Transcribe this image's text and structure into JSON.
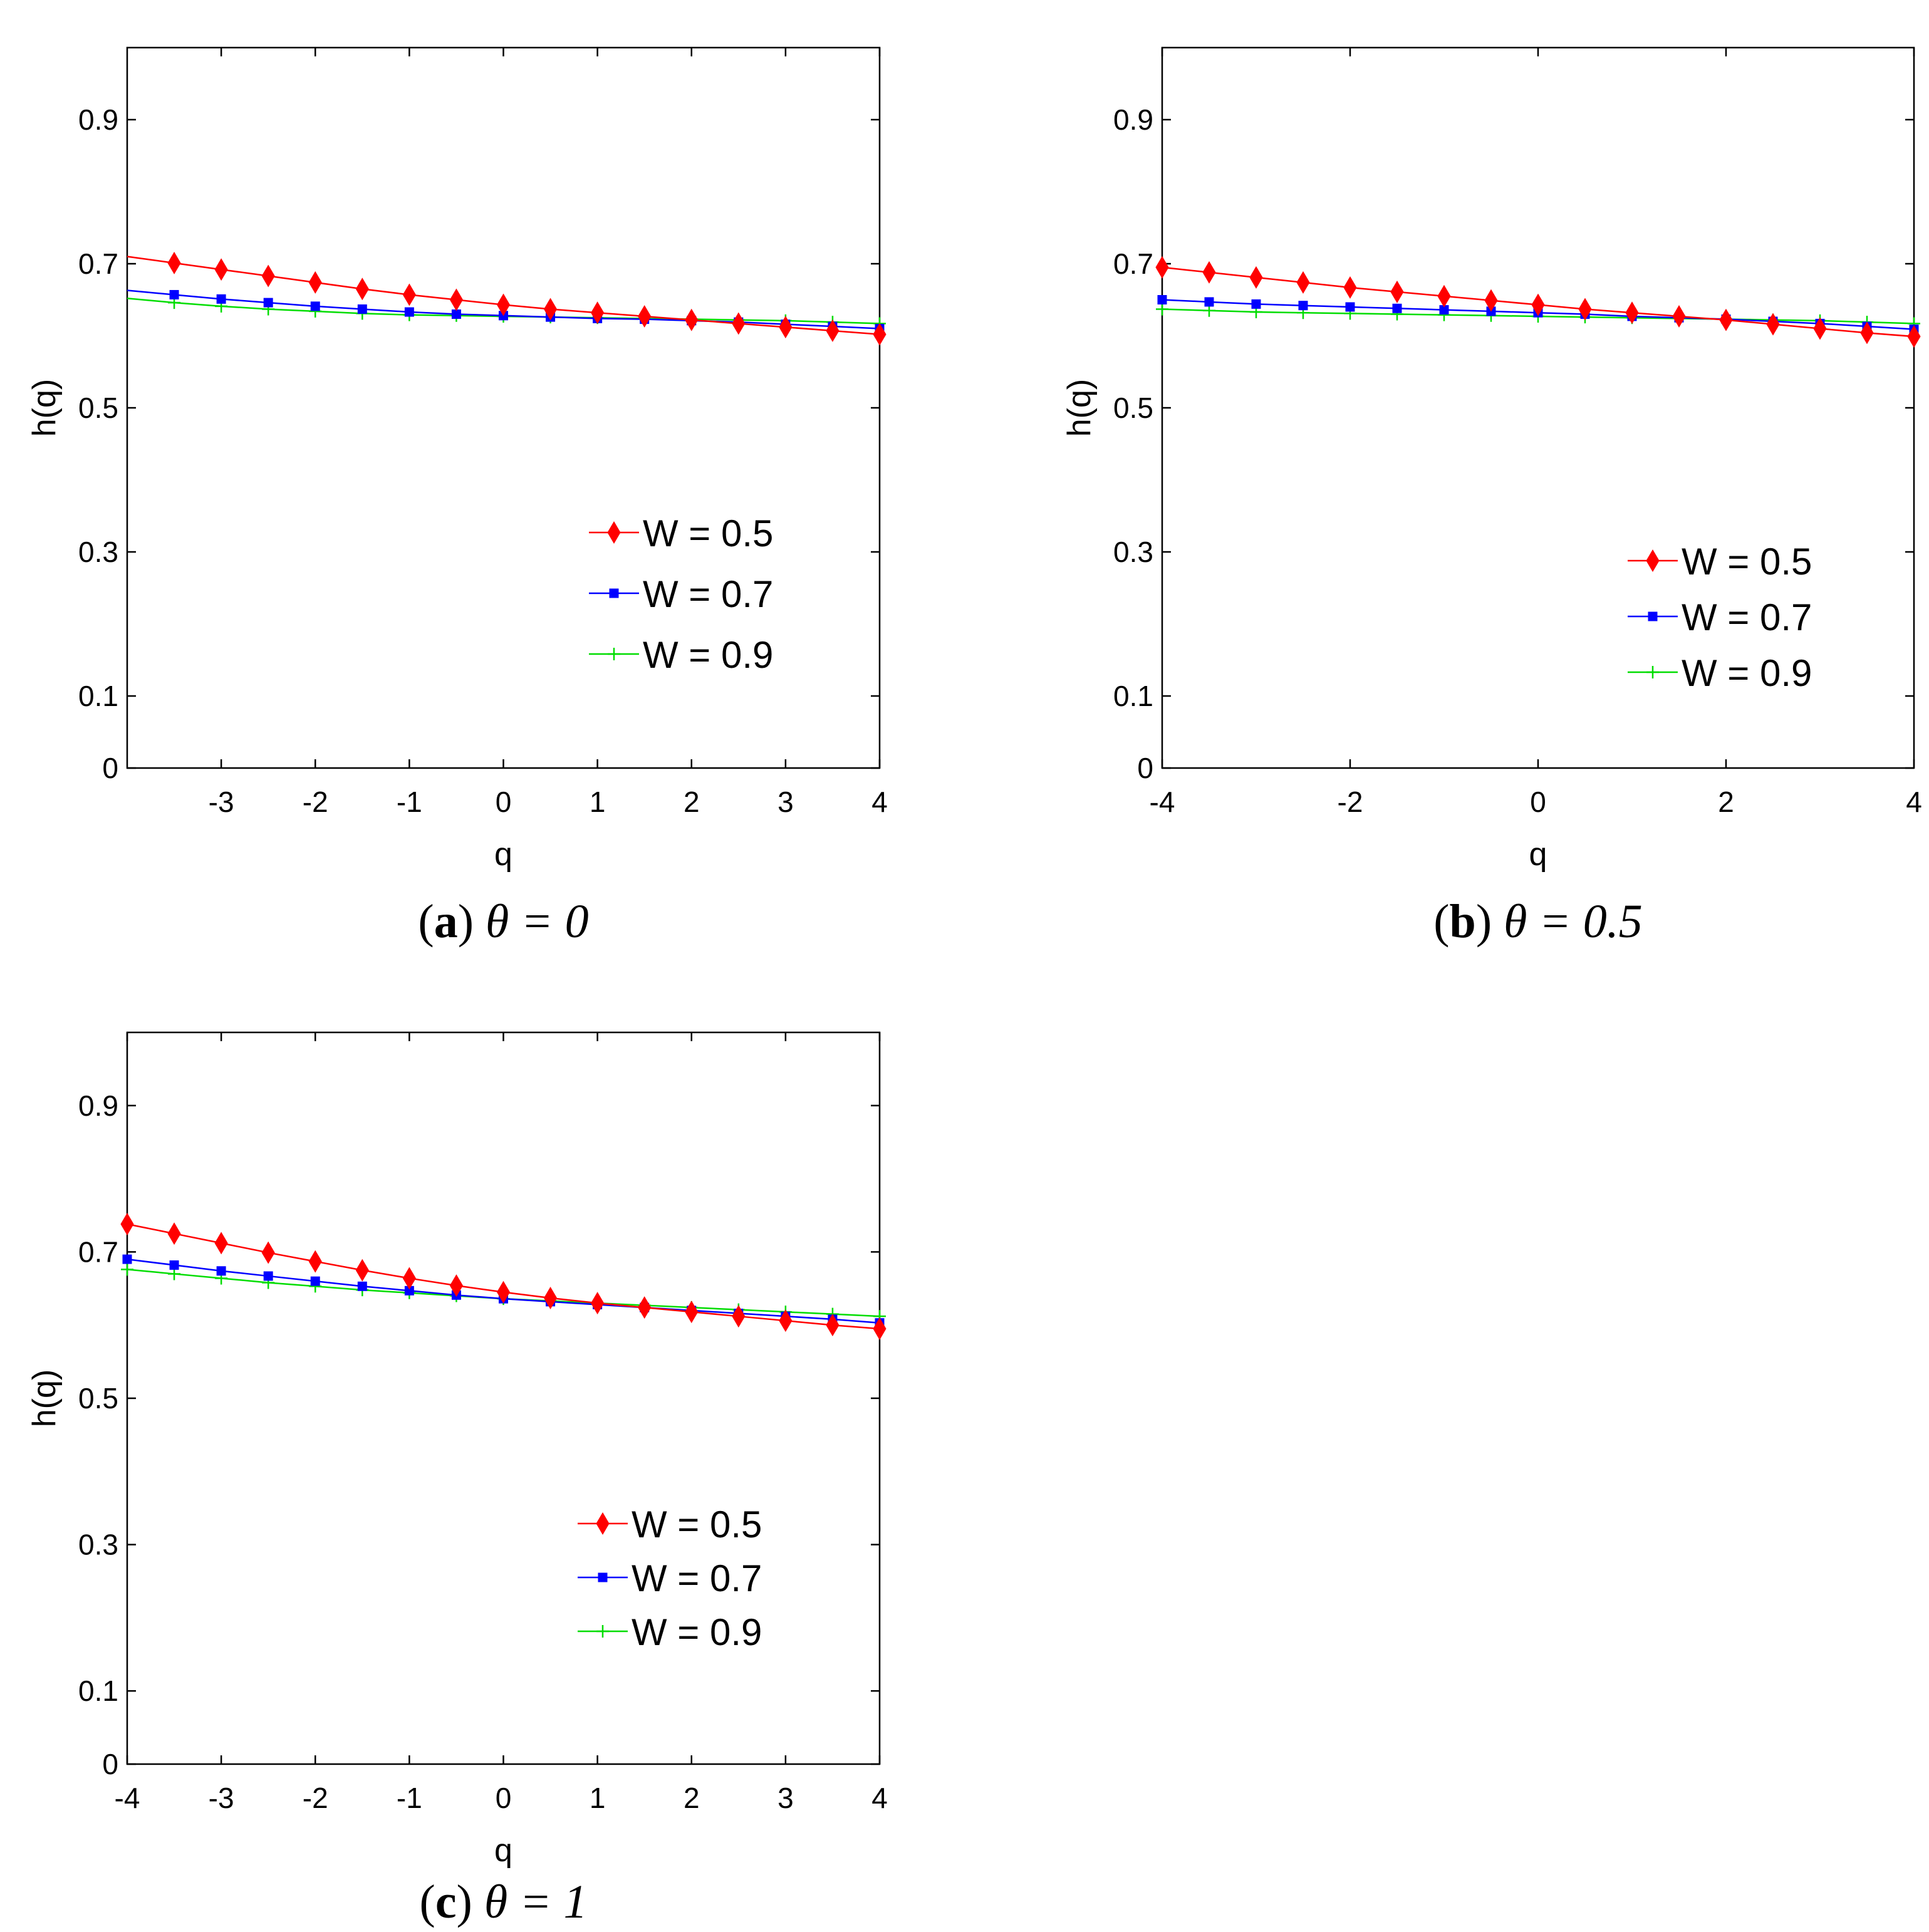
{
  "chart_data": [
    {
      "id": "a",
      "type": "line",
      "caption_letter": "a",
      "caption_math": "θ = 0",
      "xlabel": "q",
      "ylabel": "h(q)",
      "xlim": [
        -4,
        4
      ],
      "ylim": [
        0,
        1
      ],
      "xticks": [
        -3,
        -2,
        -1,
        0,
        1,
        2,
        3,
        4
      ],
      "xtick_labels": [
        "-3",
        "-2",
        "-1",
        "0",
        "1",
        "2",
        "3",
        "4"
      ],
      "yticks": [
        0,
        0.1,
        0.3,
        0.5,
        0.7,
        0.9
      ],
      "ytick_labels": [
        "0",
        "0.1",
        "0.3",
        "0.5",
        "0.7",
        "0.9"
      ],
      "x": [
        -4,
        -3.5,
        -3,
        -2.5,
        -2,
        -1.5,
        -1,
        -0.5,
        0,
        0.5,
        1,
        1.5,
        2,
        2.5,
        3,
        3.5,
        4
      ],
      "legend_position": "lower-right",
      "series": [
        {
          "name": "W = 0.5",
          "color": "#ff0000",
          "marker": "diamond",
          "values": [
            0.71,
            0.701,
            0.692,
            0.683,
            0.674,
            0.665,
            0.657,
            0.65,
            0.643,
            0.637,
            0.632,
            0.627,
            0.622,
            0.617,
            0.612,
            0.607,
            0.602
          ]
        },
        {
          "name": "W = 0.7",
          "color": "#0000ff",
          "marker": "square",
          "values": [
            0.663,
            0.657,
            0.651,
            0.646,
            0.641,
            0.637,
            0.633,
            0.63,
            0.628,
            0.626,
            0.624,
            0.623,
            0.621,
            0.619,
            0.616,
            0.613,
            0.61
          ]
        },
        {
          "name": "W = 0.9",
          "color": "#00dd00",
          "marker": "plus",
          "values": [
            0.652,
            0.646,
            0.641,
            0.637,
            0.634,
            0.631,
            0.629,
            0.628,
            0.627,
            0.626,
            0.625,
            0.624,
            0.623,
            0.622,
            0.621,
            0.619,
            0.617
          ]
        }
      ]
    },
    {
      "id": "b",
      "type": "line",
      "caption_letter": "b",
      "caption_math": "θ = 0.5",
      "xlabel": "q",
      "ylabel": "h(q)",
      "xlim": [
        -4,
        4
      ],
      "ylim": [
        0,
        1
      ],
      "xticks": [
        -4,
        -2,
        0,
        2,
        4
      ],
      "xtick_labels": [
        "-4",
        "-2",
        "0",
        "2",
        "4"
      ],
      "yticks": [
        0,
        0.1,
        0.3,
        0.5,
        0.7,
        0.9
      ],
      "ytick_labels": [
        "0",
        "0.1",
        "0.3",
        "0.5",
        "0.7",
        "0.9"
      ],
      "x": [
        -4,
        -3.5,
        -3,
        -2.5,
        -2,
        -1.5,
        -1,
        -0.5,
        0,
        0.5,
        1,
        1.5,
        2,
        2.5,
        3,
        3.5,
        4
      ],
      "legend_position": "lower-right",
      "series": [
        {
          "name": "W = 0.5",
          "color": "#ff0000",
          "marker": "diamond",
          "values": [
            0.695,
            0.688,
            0.681,
            0.674,
            0.667,
            0.661,
            0.655,
            0.649,
            0.643,
            0.637,
            0.632,
            0.627,
            0.622,
            0.616,
            0.61,
            0.604,
            0.599
          ]
        },
        {
          "name": "W = 0.7",
          "color": "#0000ff",
          "marker": "square",
          "values": [
            0.65,
            0.647,
            0.644,
            0.642,
            0.64,
            0.638,
            0.636,
            0.634,
            0.632,
            0.63,
            0.627,
            0.625,
            0.623,
            0.62,
            0.617,
            0.613,
            0.609
          ]
        },
        {
          "name": "W = 0.9",
          "color": "#00dd00",
          "marker": "plus",
          "values": [
            0.637,
            0.635,
            0.633,
            0.632,
            0.631,
            0.63,
            0.629,
            0.628,
            0.627,
            0.626,
            0.625,
            0.624,
            0.623,
            0.622,
            0.621,
            0.619,
            0.617
          ]
        }
      ]
    },
    {
      "id": "c",
      "type": "line",
      "caption_letter": "c",
      "caption_math": "θ = 1",
      "xlabel": "q",
      "ylabel": "h(q)",
      "xlim": [
        -4,
        4
      ],
      "ylim": [
        0,
        1
      ],
      "xticks": [
        -4,
        -3,
        -2,
        -1,
        0,
        1,
        2,
        3,
        4
      ],
      "xtick_labels": [
        "-4",
        "-3",
        "-2",
        "-1",
        "0",
        "1",
        "2",
        "3",
        "4"
      ],
      "yticks": [
        0,
        0.1,
        0.3,
        0.5,
        0.7,
        0.9
      ],
      "ytick_labels": [
        "0",
        "0.1",
        "0.3",
        "0.5",
        "0.7",
        "0.9"
      ],
      "x": [
        -4,
        -3.5,
        -3,
        -2.5,
        -2,
        -1.5,
        -1,
        -0.5,
        0,
        0.5,
        1,
        1.5,
        2,
        2.5,
        3,
        3.5,
        4
      ],
      "legend_position": "lower-right",
      "series": [
        {
          "name": "W = 0.5",
          "color": "#ff0000",
          "marker": "diamond",
          "values": [
            0.738,
            0.725,
            0.712,
            0.699,
            0.687,
            0.675,
            0.664,
            0.654,
            0.645,
            0.637,
            0.63,
            0.624,
            0.618,
            0.612,
            0.606,
            0.6,
            0.595
          ]
        },
        {
          "name": "W = 0.7",
          "color": "#0000ff",
          "marker": "square",
          "values": [
            0.69,
            0.682,
            0.674,
            0.667,
            0.66,
            0.653,
            0.647,
            0.641,
            0.636,
            0.632,
            0.628,
            0.624,
            0.62,
            0.616,
            0.612,
            0.608,
            0.603
          ]
        },
        {
          "name": "W = 0.9",
          "color": "#00dd00",
          "marker": "plus",
          "values": [
            0.676,
            0.67,
            0.664,
            0.658,
            0.653,
            0.648,
            0.644,
            0.64,
            0.636,
            0.633,
            0.63,
            0.627,
            0.624,
            0.621,
            0.618,
            0.615,
            0.612
          ]
        }
      ]
    }
  ]
}
